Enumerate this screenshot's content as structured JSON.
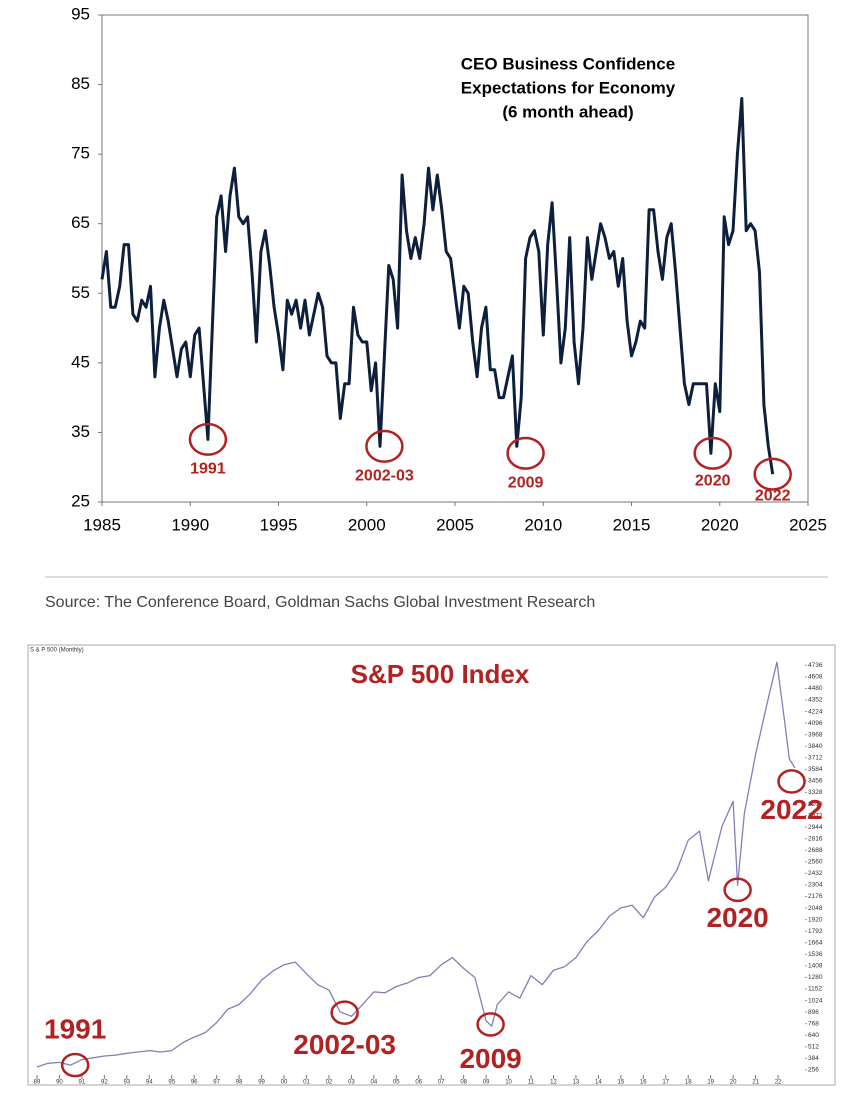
{
  "chart_data": [
    {
      "type": "line",
      "title": [
        "CEO Business Confidence",
        "Expectations for Economy",
        "(6 month ahead)"
      ],
      "source": "Source: The Conference Board, Goldman Sachs Global Investment Research",
      "color": "#0d1f3c",
      "xlim": [
        1985,
        2025
      ],
      "xticks": [
        1985,
        1990,
        1995,
        2000,
        2005,
        2010,
        2015,
        2020,
        2025
      ],
      "ylim": [
        25,
        95
      ],
      "yticks": [
        25,
        35,
        45,
        55,
        65,
        75,
        85,
        95
      ],
      "x": [
        1985,
        1985.25,
        1985.5,
        1985.75,
        1986,
        1986.25,
        1986.5,
        1986.75,
        1987,
        1987.25,
        1987.5,
        1987.75,
        1988,
        1988.25,
        1988.5,
        1988.75,
        1989,
        1989.25,
        1989.5,
        1989.75,
        1990,
        1990.25,
        1990.5,
        1990.75,
        1991,
        1991.25,
        1991.5,
        1991.75,
        1992,
        1992.25,
        1992.5,
        1992.75,
        1993,
        1993.25,
        1993.5,
        1993.75,
        1994,
        1994.25,
        1994.5,
        1994.75,
        1995,
        1995.25,
        1995.5,
        1995.75,
        1996,
        1996.25,
        1996.5,
        1996.75,
        1997,
        1997.25,
        1997.5,
        1997.75,
        1998,
        1998.25,
        1998.5,
        1998.75,
        1999,
        1999.25,
        1999.5,
        1999.75,
        2000,
        2000.25,
        2000.5,
        2000.75,
        2001,
        2001.25,
        2001.5,
        2001.75,
        2002,
        2002.25,
        2002.5,
        2002.75,
        2003,
        2003.25,
        2003.5,
        2003.75,
        2004,
        2004.25,
        2004.5,
        2004.75,
        2005,
        2005.25,
        2005.5,
        2005.75,
        2006,
        2006.25,
        2006.5,
        2006.75,
        2007,
        2007.25,
        2007.5,
        2007.75,
        2008,
        2008.25,
        2008.5,
        2008.75,
        2009,
        2009.25,
        2009.5,
        2009.75,
        2010,
        2010.25,
        2010.5,
        2010.75,
        2011,
        2011.25,
        2011.5,
        2011.75,
        2012,
        2012.25,
        2012.5,
        2012.75,
        2013,
        2013.25,
        2013.5,
        2013.75,
        2014,
        2014.25,
        2014.5,
        2014.75,
        2015,
        2015.25,
        2015.5,
        2015.75,
        2016,
        2016.25,
        2016.5,
        2016.75,
        2017,
        2017.25,
        2017.5,
        2017.75,
        2018,
        2018.25,
        2018.5,
        2018.75,
        2019,
        2019.25,
        2019.5,
        2019.75,
        2020,
        2020.25,
        2020.5,
        2020.75,
        2021,
        2021.25,
        2021.5,
        2021.75,
        2022,
        2022.25,
        2022.5,
        2022.75,
        2023
      ],
      "values": [
        57,
        61,
        53,
        53,
        56,
        62,
        62,
        52,
        51,
        54,
        53,
        56,
        43,
        50,
        54,
        51,
        47,
        43,
        47,
        48,
        43,
        49,
        50,
        42,
        34,
        50,
        66,
        69,
        61,
        69,
        73,
        66,
        65,
        66,
        58,
        48,
        61,
        64,
        59,
        53,
        49,
        44,
        54,
        52,
        54,
        50,
        54,
        49,
        52,
        55,
        53,
        46,
        45,
        45,
        37,
        42,
        42,
        53,
        49,
        48,
        48,
        41,
        45,
        33,
        46,
        59,
        57,
        50,
        72,
        64,
        60,
        63,
        60,
        65,
        73,
        67,
        72,
        67,
        61,
        60,
        55,
        50,
        56,
        55,
        48,
        43,
        50,
        53,
        44,
        44,
        40,
        40,
        43,
        46,
        33,
        40,
        60,
        63,
        64,
        61,
        49,
        62,
        68,
        57,
        45,
        50,
        63,
        48,
        42,
        50,
        63,
        57,
        61,
        65,
        63,
        60,
        61,
        56,
        60,
        51,
        46,
        48,
        51,
        50,
        67,
        67,
        61,
        57,
        63,
        65,
        58,
        50,
        42,
        39,
        42,
        42,
        42,
        42,
        32,
        42,
        38,
        66,
        62,
        64,
        75,
        83,
        64,
        65,
        64,
        58,
        39,
        33,
        29
      ],
      "annotations": [
        {
          "text": "1991",
          "x": 1991,
          "y": 34
        },
        {
          "text": "2002-03",
          "x": 2001,
          "y": 33
        },
        {
          "text": "2009",
          "x": 2009,
          "y": 32
        },
        {
          "text": "2020",
          "x": 2019.6,
          "y": 32
        },
        {
          "text": "2022",
          "x": 2023,
          "y": 29
        }
      ],
      "annotation_color": "#b22222"
    },
    {
      "type": "line",
      "title": "S&P 500 Index",
      "subtitle": "S & P 500 (Monthly)",
      "color": "#8080b8",
      "xlim": [
        1988.6,
        2023.2
      ],
      "xticks": [
        {
          "value": 1989,
          "label": "89"
        },
        {
          "value": 1990,
          "label": "90"
        },
        {
          "value": 1991,
          "label": "91"
        },
        {
          "value": 1992,
          "label": "92"
        },
        {
          "value": 1993,
          "label": "93"
        },
        {
          "value": 1994,
          "label": "94"
        },
        {
          "value": 1995,
          "label": "95"
        },
        {
          "value": 1996,
          "label": "96"
        },
        {
          "value": 1997,
          "label": "97"
        },
        {
          "value": 1998,
          "label": "98"
        },
        {
          "value": 1999,
          "label": "99"
        },
        {
          "value": 2000,
          "label": "00"
        },
        {
          "value": 2001,
          "label": "01"
        },
        {
          "value": 2002,
          "label": "02"
        },
        {
          "value": 2003,
          "label": "03"
        },
        {
          "value": 2004,
          "label": "04"
        },
        {
          "value": 2005,
          "label": "05"
        },
        {
          "value": 2006,
          "label": "06"
        },
        {
          "value": 2007,
          "label": "07"
        },
        {
          "value": 2008,
          "label": "08"
        },
        {
          "value": 2009,
          "label": "09"
        },
        {
          "value": 2010,
          "label": "10"
        },
        {
          "value": 2011,
          "label": "11"
        },
        {
          "value": 2012,
          "label": "12"
        },
        {
          "value": 2013,
          "label": "13"
        },
        {
          "value": 2014,
          "label": "14"
        },
        {
          "value": 2015,
          "label": "15"
        },
        {
          "value": 2016,
          "label": "16"
        },
        {
          "value": 2017,
          "label": "17"
        },
        {
          "value": 2018,
          "label": "18"
        },
        {
          "value": 2019,
          "label": "19"
        },
        {
          "value": 2020,
          "label": "20"
        },
        {
          "value": 2021,
          "label": "21"
        },
        {
          "value": 2022,
          "label": "22"
        }
      ],
      "ylim": [
        200,
        4850
      ],
      "yticks": [
        256,
        384,
        512,
        640,
        768,
        896,
        1024,
        1152,
        1280,
        1408,
        1536,
        1664,
        1792,
        1920,
        2048,
        2176,
        2304,
        2432,
        2560,
        2688,
        2816,
        2944,
        3072,
        3200,
        3328,
        3456,
        3584,
        3712,
        3840,
        3968,
        4096,
        4224,
        4352,
        4480,
        4608,
        4736
      ],
      "x": [
        1989,
        1989.5,
        1990,
        1990.5,
        1991,
        1991.5,
        1992,
        1992.5,
        1993,
        1993.5,
        1994,
        1994.5,
        1995,
        1995.5,
        1996,
        1996.5,
        1997,
        1997.5,
        1998,
        1998.5,
        1999,
        1999.5,
        2000,
        2000.5,
        2001,
        2001.5,
        2002,
        2002.5,
        2003,
        2003.5,
        2004,
        2004.5,
        2005,
        2005.5,
        2006,
        2006.5,
        2007,
        2007.5,
        2008,
        2008.5,
        2009,
        2009.25,
        2009.5,
        2010,
        2010.5,
        2011,
        2011.5,
        2012,
        2012.5,
        2013,
        2013.5,
        2014,
        2014.5,
        2015,
        2015.5,
        2016,
        2016.5,
        2017,
        2017.5,
        2018,
        2018.5,
        2018.9,
        2019.5,
        2020,
        2020.2,
        2020.5,
        2021,
        2021.5,
        2021.95,
        2022.3,
        2022.5,
        2022.75
      ],
      "values": [
        290,
        330,
        340,
        310,
        370,
        390,
        410,
        420,
        440,
        455,
        470,
        455,
        470,
        560,
        620,
        670,
        780,
        930,
        980,
        1100,
        1250,
        1350,
        1420,
        1450,
        1320,
        1200,
        1140,
        900,
        850,
        980,
        1120,
        1110,
        1180,
        1220,
        1280,
        1300,
        1420,
        1500,
        1380,
        1280,
        800,
        740,
        980,
        1120,
        1050,
        1300,
        1200,
        1360,
        1400,
        1500,
        1680,
        1800,
        1960,
        2050,
        2080,
        1940,
        2170,
        2280,
        2470,
        2800,
        2900,
        2350,
        2950,
        3230,
        2300,
        3100,
        3750,
        4300,
        4770,
        4100,
        3700,
        3600
      ],
      "annotations": [
        {
          "text": "1991",
          "x": 1990.7,
          "y": 310
        },
        {
          "text": "2002-03",
          "x": 2002.7,
          "y": 890
        },
        {
          "text": "2009",
          "x": 2009.2,
          "y": 760
        },
        {
          "text": "2020",
          "x": 2020.2,
          "y": 2250
        },
        {
          "text": "2022",
          "x": 2022.6,
          "y": 3450
        }
      ],
      "annotation_color": "#b22222"
    }
  ]
}
